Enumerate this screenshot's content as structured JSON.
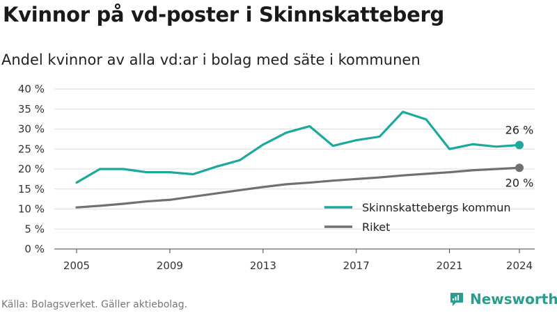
{
  "title": "Kvinnor på vd-poster i Skinnskatteberg",
  "subtitle": "Andel kvinnor av alla vd:ar i bolag med säte i kommunen",
  "source": "Källa: Bolagsverket. Gäller aktiebolag.",
  "brand": "Newsworthy",
  "colors": {
    "kommun": "#1aa99a",
    "riket": "#707070",
    "grid": "#dcdcdc",
    "brand": "#2a9d8f"
  },
  "chart_data": {
    "type": "line",
    "x": [
      2005,
      2006,
      2007,
      2008,
      2009,
      2010,
      2011,
      2012,
      2013,
      2014,
      2015,
      2016,
      2017,
      2018,
      2019,
      2020,
      2021,
      2022,
      2023,
      2024
    ],
    "x_ticks": [
      "2005",
      "2009",
      "2013",
      "2017",
      "2021",
      "2024"
    ],
    "y_ticks": [
      "0 %",
      "5 %",
      "10 %",
      "15 %",
      "20 %",
      "25 %",
      "30 %",
      "35 %",
      "40 %"
    ],
    "ylim": [
      0,
      40
    ],
    "grid": true,
    "legend_position": "bottom-right",
    "series": [
      {
        "name": "Skinnskattebergs kommun",
        "color": "#1aa99a",
        "values": [
          16.6,
          20.0,
          20.0,
          19.2,
          19.2,
          18.7,
          20.6,
          22.2,
          26.1,
          29.1,
          30.7,
          25.8,
          27.2,
          28.1,
          34.3,
          32.4,
          25.0,
          26.2,
          25.6,
          26.0
        ],
        "end_label": "26 %"
      },
      {
        "name": "Riket",
        "color": "#707070",
        "values": [
          10.4,
          10.8,
          11.3,
          11.9,
          12.3,
          13.1,
          13.9,
          14.7,
          15.5,
          16.2,
          16.6,
          17.1,
          17.5,
          17.9,
          18.4,
          18.8,
          19.2,
          19.7,
          20.0,
          20.3
        ],
        "end_label": "20 %"
      }
    ]
  }
}
